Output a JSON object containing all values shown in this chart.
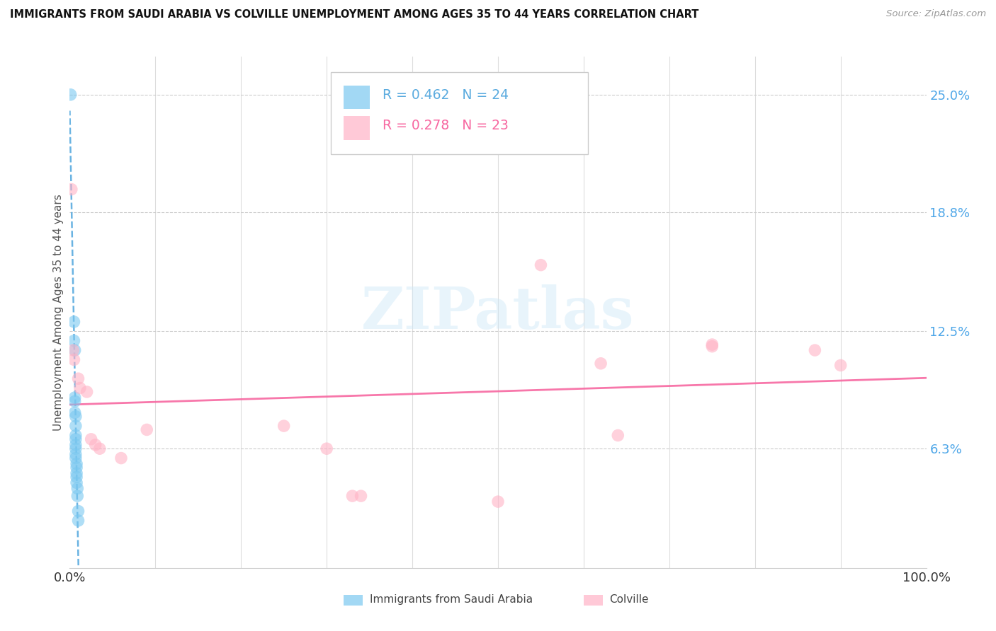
{
  "title": "IMMIGRANTS FROM SAUDI ARABIA VS COLVILLE UNEMPLOYMENT AMONG AGES 35 TO 44 YEARS CORRELATION CHART",
  "source": "Source: ZipAtlas.com",
  "ylabel": "Unemployment Among Ages 35 to 44 years",
  "ytick_labels": [
    "6.3%",
    "12.5%",
    "18.8%",
    "25.0%"
  ],
  "ytick_values": [
    0.063,
    0.125,
    0.188,
    0.25
  ],
  "xlim": [
    0,
    1.0
  ],
  "ylim": [
    0,
    0.27
  ],
  "legend_blue_label": "Immigrants from Saudi Arabia",
  "legend_pink_label": "Colville",
  "R_blue": 0.462,
  "N_blue": 24,
  "R_pink": 0.278,
  "N_pink": 23,
  "blue_color": "#7bc8f0",
  "pink_color": "#ffb3c6",
  "trendline_blue_color": "#5aabdf",
  "trendline_pink_color": "#f768a1",
  "watermark": "ZIPatlas",
  "blue_scatter": [
    [
      0.001,
      0.25
    ],
    [
      0.005,
      0.13
    ],
    [
      0.005,
      0.12
    ],
    [
      0.006,
      0.115
    ],
    [
      0.006,
      0.09
    ],
    [
      0.006,
      0.088
    ],
    [
      0.006,
      0.082
    ],
    [
      0.007,
      0.08
    ],
    [
      0.007,
      0.075
    ],
    [
      0.007,
      0.07
    ],
    [
      0.007,
      0.068
    ],
    [
      0.007,
      0.065
    ],
    [
      0.007,
      0.063
    ],
    [
      0.007,
      0.06
    ],
    [
      0.007,
      0.058
    ],
    [
      0.008,
      0.055
    ],
    [
      0.008,
      0.053
    ],
    [
      0.008,
      0.05
    ],
    [
      0.008,
      0.048
    ],
    [
      0.008,
      0.045
    ],
    [
      0.009,
      0.042
    ],
    [
      0.009,
      0.038
    ],
    [
      0.01,
      0.03
    ],
    [
      0.01,
      0.025
    ]
  ],
  "pink_scatter": [
    [
      0.002,
      0.2
    ],
    [
      0.004,
      0.115
    ],
    [
      0.005,
      0.11
    ],
    [
      0.01,
      0.1
    ],
    [
      0.012,
      0.095
    ],
    [
      0.02,
      0.093
    ],
    [
      0.025,
      0.068
    ],
    [
      0.03,
      0.065
    ],
    [
      0.035,
      0.063
    ],
    [
      0.06,
      0.058
    ],
    [
      0.09,
      0.073
    ],
    [
      0.25,
      0.075
    ],
    [
      0.3,
      0.063
    ],
    [
      0.33,
      0.038
    ],
    [
      0.34,
      0.038
    ],
    [
      0.5,
      0.035
    ],
    [
      0.55,
      0.16
    ],
    [
      0.62,
      0.108
    ],
    [
      0.64,
      0.07
    ],
    [
      0.75,
      0.117
    ],
    [
      0.75,
      0.118
    ],
    [
      0.87,
      0.115
    ],
    [
      0.9,
      0.107
    ]
  ]
}
